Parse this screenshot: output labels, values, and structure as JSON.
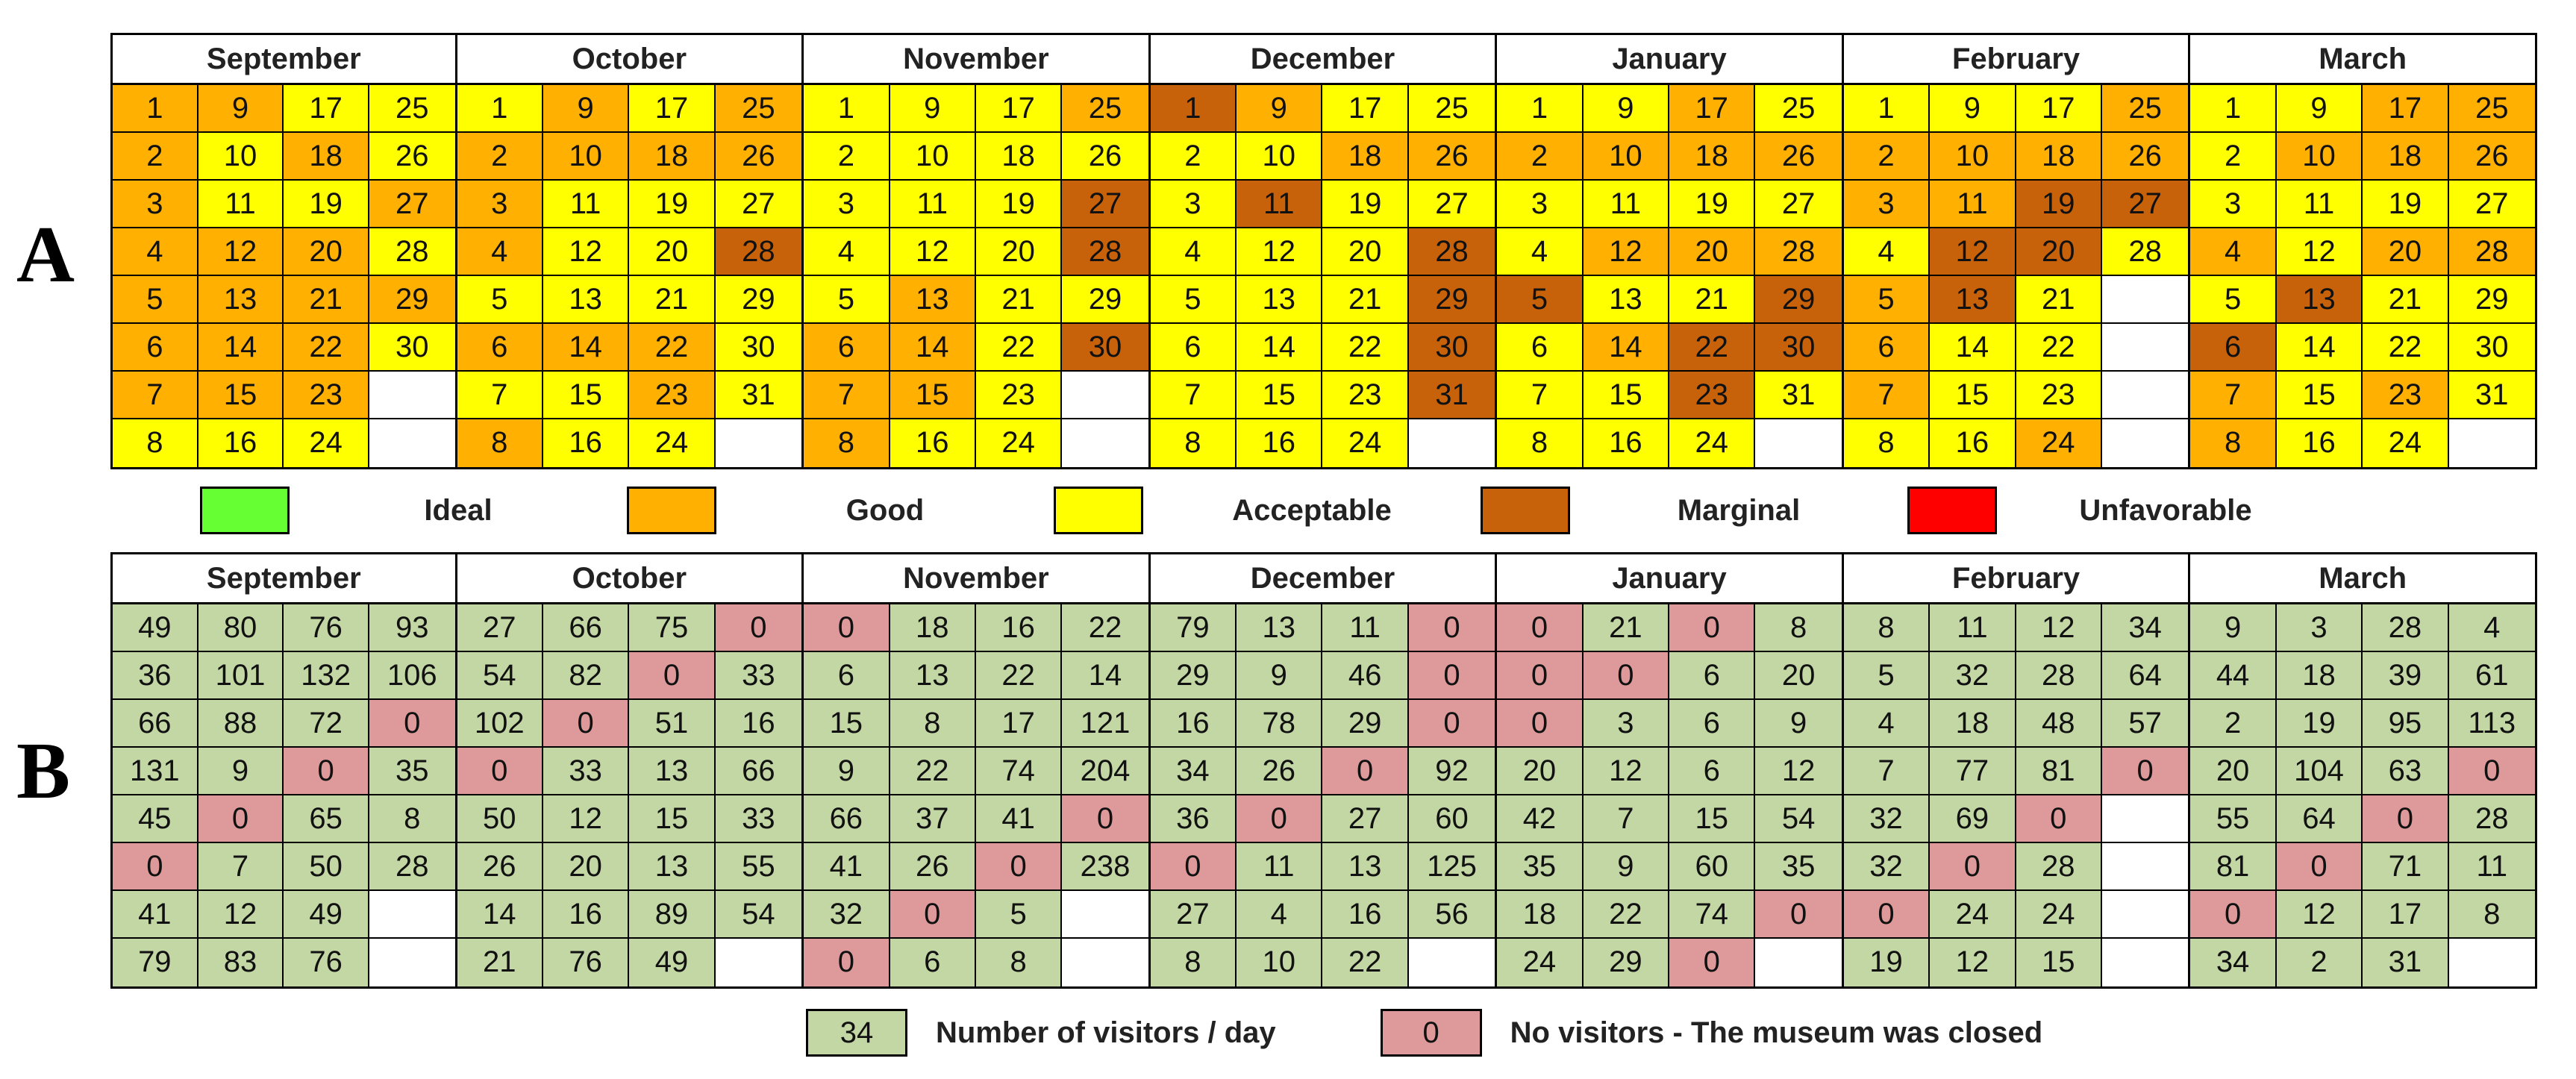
{
  "panels": {
    "a_label": "A",
    "b_label": "B"
  },
  "colors": {
    "ideal": "#66ff33",
    "good": "#ffb000",
    "acceptable": "#ffff00",
    "marginal": "#c8620a",
    "unfavorable": "#ff0000",
    "visitors": "#c3d7a5",
    "closed": "#de9a9a"
  },
  "legend_a": [
    {
      "key": "ideal",
      "label": "Ideal"
    },
    {
      "key": "good",
      "label": "Good"
    },
    {
      "key": "acceptable",
      "label": "Acceptable"
    },
    {
      "key": "marginal",
      "label": "Marginal"
    },
    {
      "key": "unfavorable",
      "label": "Unfavorable"
    }
  ],
  "legend_b": [
    {
      "key": "visitors",
      "sample": "34",
      "label": "Number of visitors / day"
    },
    {
      "key": "closed",
      "sample": "0",
      "label": "No visitors - The museum was closed"
    }
  ],
  "chart_data": [
    {
      "type": "heatmap",
      "panel": "A",
      "layout": "calendar: 8 rows x 4 columns per month, days numbered down each column",
      "categories_legend": [
        "Ideal",
        "Good",
        "Acceptable",
        "Marginal",
        "Unfavorable"
      ],
      "months": [
        {
          "name": "September",
          "days": 30,
          "good": [
            1,
            2,
            3,
            4,
            5,
            6,
            7,
            9,
            12,
            13,
            14,
            15,
            18,
            20,
            21,
            22,
            23,
            27,
            29
          ],
          "marginal": []
        },
        {
          "name": "October",
          "days": 31,
          "good": [
            2,
            3,
            4,
            6,
            8,
            9,
            10,
            14,
            18,
            22,
            23,
            25,
            26
          ],
          "marginal": [
            28
          ]
        },
        {
          "name": "November",
          "days": 30,
          "good": [
            6,
            7,
            8,
            13,
            14,
            15,
            25
          ],
          "marginal": [
            27,
            28,
            30
          ]
        },
        {
          "name": "December",
          "days": 31,
          "good": [
            9,
            18,
            26
          ],
          "marginal": [
            1,
            11,
            28,
            29,
            30,
            31
          ]
        },
        {
          "name": "January",
          "days": 31,
          "good": [
            2,
            10,
            12,
            14,
            17,
            18,
            20,
            26,
            28
          ],
          "marginal": [
            5,
            22,
            23,
            29,
            30
          ]
        },
        {
          "name": "February",
          "days": 28,
          "good": [
            2,
            3,
            5,
            6,
            7,
            10,
            11,
            18,
            24,
            25,
            26
          ],
          "marginal": [
            12,
            13,
            19,
            20,
            27
          ]
        },
        {
          "name": "March",
          "days": 31,
          "good": [
            4,
            7,
            8,
            10,
            17,
            18,
            20,
            23,
            25,
            26,
            28
          ],
          "marginal": [
            6,
            13
          ]
        }
      ]
    },
    {
      "type": "heatmap",
      "panel": "B",
      "layout": "calendar: 8 rows x 4 columns per month, days ordered down each column",
      "unit": "visitors / day",
      "months": [
        {
          "name": "September",
          "values": [
            49,
            36,
            66,
            131,
            45,
            0,
            41,
            79,
            80,
            101,
            88,
            9,
            0,
            7,
            12,
            83,
            76,
            132,
            72,
            0,
            65,
            50,
            49,
            76,
            93,
            106,
            0,
            35,
            8,
            28
          ]
        },
        {
          "name": "October",
          "values": [
            27,
            54,
            102,
            0,
            50,
            26,
            14,
            21,
            66,
            82,
            0,
            33,
            12,
            20,
            16,
            76,
            75,
            0,
            51,
            13,
            15,
            13,
            89,
            49,
            0,
            33,
            16,
            66,
            33,
            55,
            54
          ]
        },
        {
          "name": "November",
          "values": [
            0,
            6,
            15,
            9,
            66,
            41,
            32,
            0,
            18,
            13,
            8,
            22,
            37,
            26,
            0,
            6,
            16,
            22,
            17,
            74,
            41,
            0,
            5,
            8,
            22,
            14,
            121,
            204,
            0,
            238
          ]
        },
        {
          "name": "December",
          "values": [
            79,
            29,
            16,
            34,
            36,
            0,
            27,
            8,
            13,
            9,
            78,
            26,
            0,
            11,
            4,
            10,
            11,
            46,
            29,
            0,
            27,
            13,
            16,
            22,
            0,
            0,
            0,
            92,
            60,
            125,
            56
          ]
        },
        {
          "name": "January",
          "values": [
            0,
            0,
            0,
            20,
            42,
            35,
            18,
            24,
            21,
            0,
            3,
            12,
            7,
            9,
            22,
            29,
            0,
            6,
            6,
            6,
            15,
            60,
            74,
            0,
            8,
            20,
            9,
            12,
            54,
            35,
            0
          ]
        },
        {
          "name": "February",
          "values": [
            8,
            5,
            4,
            7,
            32,
            32,
            0,
            19,
            11,
            32,
            18,
            77,
            69,
            0,
            24,
            12,
            12,
            28,
            48,
            81,
            0,
            28,
            24,
            15,
            34,
            64,
            57,
            0
          ]
        },
        {
          "name": "March",
          "values": [
            9,
            44,
            2,
            20,
            55,
            81,
            0,
            34,
            3,
            18,
            19,
            104,
            64,
            0,
            12,
            2,
            28,
            39,
            95,
            63,
            0,
            71,
            17,
            31,
            4,
            61,
            113,
            0,
            28,
            11,
            8
          ]
        }
      ]
    }
  ]
}
